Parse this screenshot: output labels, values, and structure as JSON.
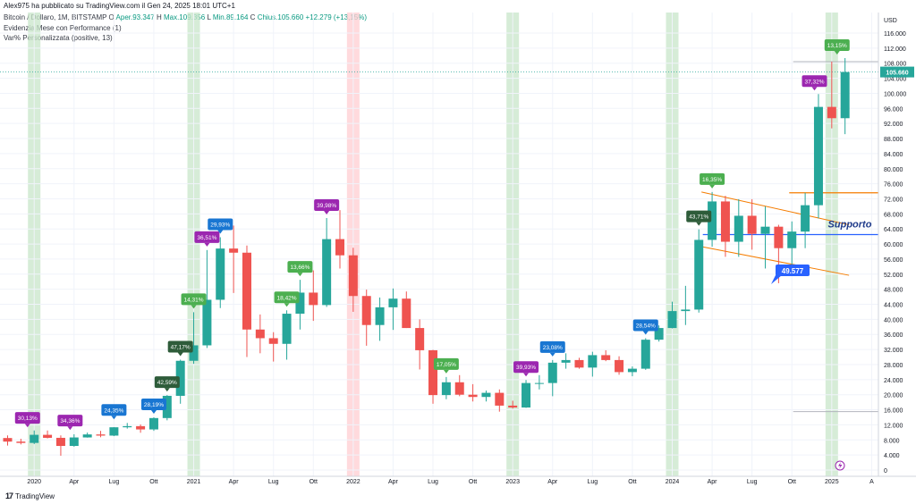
{
  "header": {
    "published": "Alex975 ha pubblicato su TradingView.com il Gen 24, 2025 18:01 UTC+1",
    "symbol": "Bitcoin / Dollaro, 1M, BITSTAMP",
    "o_label": "O",
    "o_value": "Aper.93.347",
    "h_label": "H",
    "h_value": "Max.109.356",
    "l_label": "L",
    "l_value": "Min.89.164",
    "c_label": "C",
    "c_value": "Chius.105.660",
    "change": "+12.279 (+13,15%)",
    "indicator1": "Evidenzia Mese con Performance (1)",
    "indicator2": "Var% Personalizzata (positive, 13)"
  },
  "brand": {
    "text": "TradingView",
    "logo": "17"
  },
  "colors": {
    "up": "#26a69a",
    "down": "#ef5350",
    "band_green": "#c8e6c9",
    "band_red": "#ffcdd2",
    "support_line": "#2962ff",
    "channel_line": "#f57c00",
    "label_purple": "#9c27b0",
    "label_blue": "#1976d2",
    "label_green": "#4caf50",
    "label_dark": "#2e5c3a",
    "price_tag": "#26a69a"
  },
  "chart_data": {
    "type": "candlestick",
    "currency_label": "USD",
    "ylim": [
      0,
      118000
    ],
    "y_ticks": [
      0,
      4000,
      8000,
      12000,
      16000,
      20000,
      24000,
      28000,
      32000,
      36000,
      40000,
      44000,
      48000,
      52000,
      56000,
      60000,
      64000,
      68000,
      72000,
      76000,
      80000,
      84000,
      88000,
      92000,
      96000,
      100000,
      104000,
      108000,
      112000,
      116000
    ],
    "y_tick_labels": [
      "0",
      "4.000",
      "8.000",
      "12.000",
      "16.000",
      "20.000",
      "24.000",
      "28.000",
      "32.000",
      "36.000",
      "40.000",
      "44.000",
      "48.000",
      "52.000",
      "56.000",
      "60.000",
      "64.000",
      "68.000",
      "72.000",
      "76.000",
      "80.000",
      "84.000",
      "88.000",
      "92.000",
      "96.000",
      "100.000",
      "104.000",
      "108.000",
      "112.000",
      "116.000"
    ],
    "x_ticks": [
      {
        "label": "2020",
        "index": 2
      },
      {
        "label": "Apr",
        "index": 5
      },
      {
        "label": "Lug",
        "index": 8
      },
      {
        "label": "Ott",
        "index": 11
      },
      {
        "label": "2021",
        "index": 14
      },
      {
        "label": "Apr",
        "index": 17
      },
      {
        "label": "Lug",
        "index": 20
      },
      {
        "label": "Ott",
        "index": 23
      },
      {
        "label": "2022",
        "index": 26
      },
      {
        "label": "Apr",
        "index": 29
      },
      {
        "label": "Lug",
        "index": 32
      },
      {
        "label": "Ott",
        "index": 35
      },
      {
        "label": "2023",
        "index": 38
      },
      {
        "label": "Apr",
        "index": 41
      },
      {
        "label": "Lug",
        "index": 44
      },
      {
        "label": "Ott",
        "index": 47
      },
      {
        "label": "2024",
        "index": 50
      },
      {
        "label": "Apr",
        "index": 53
      },
      {
        "label": "Lug",
        "index": 56
      },
      {
        "label": "Ott",
        "index": 59
      },
      {
        "label": "2025",
        "index": 62
      },
      {
        "label": "A",
        "index": 65
      }
    ],
    "candles": [
      {
        "o": 8500,
        "h": 9200,
        "l": 6500,
        "c": 7550
      },
      {
        "o": 7550,
        "h": 8300,
        "l": 6800,
        "c": 7200
      },
      {
        "o": 7200,
        "h": 10500,
        "l": 6900,
        "c": 9350
      },
      {
        "o": 9350,
        "h": 10500,
        "l": 8400,
        "c": 8550
      },
      {
        "o": 8550,
        "h": 9200,
        "l": 3800,
        "c": 6400
      },
      {
        "o": 6400,
        "h": 9500,
        "l": 6200,
        "c": 8650
      },
      {
        "o": 8650,
        "h": 9950,
        "l": 8600,
        "c": 9450
      },
      {
        "o": 9450,
        "h": 10400,
        "l": 8700,
        "c": 9140
      },
      {
        "o": 9140,
        "h": 11400,
        "l": 9000,
        "c": 11350
      },
      {
        "o": 11350,
        "h": 12500,
        "l": 11000,
        "c": 11650
      },
      {
        "o": 11650,
        "h": 12100,
        "l": 9900,
        "c": 10780
      },
      {
        "o": 10780,
        "h": 14000,
        "l": 10400,
        "c": 13800
      },
      {
        "o": 13800,
        "h": 19900,
        "l": 13200,
        "c": 19700
      },
      {
        "o": 19700,
        "h": 29300,
        "l": 17600,
        "c": 29000
      },
      {
        "o": 29000,
        "h": 41900,
        "l": 28200,
        "c": 33100
      },
      {
        "o": 33100,
        "h": 58400,
        "l": 32400,
        "c": 45200
      },
      {
        "o": 45200,
        "h": 61800,
        "l": 43000,
        "c": 58800
      },
      {
        "o": 58800,
        "h": 64900,
        "l": 47000,
        "c": 57700
      },
      {
        "o": 57700,
        "h": 59600,
        "l": 30000,
        "c": 37300
      },
      {
        "o": 37300,
        "h": 41300,
        "l": 31000,
        "c": 35000
      },
      {
        "o": 35000,
        "h": 36600,
        "l": 28800,
        "c": 33500
      },
      {
        "o": 33500,
        "h": 42400,
        "l": 29300,
        "c": 41500
      },
      {
        "o": 41500,
        "h": 50500,
        "l": 37300,
        "c": 47100
      },
      {
        "o": 47100,
        "h": 53000,
        "l": 39600,
        "c": 43800
      },
      {
        "o": 43800,
        "h": 66900,
        "l": 43300,
        "c": 61300
      },
      {
        "o": 61300,
        "h": 69000,
        "l": 53500,
        "c": 57000
      },
      {
        "o": 57000,
        "h": 59000,
        "l": 42000,
        "c": 46200
      },
      {
        "o": 46200,
        "h": 47900,
        "l": 33000,
        "c": 38500
      },
      {
        "o": 38500,
        "h": 45800,
        "l": 34300,
        "c": 43200
      },
      {
        "o": 43200,
        "h": 48200,
        "l": 37200,
        "c": 45500
      },
      {
        "o": 45500,
        "h": 47400,
        "l": 37700,
        "c": 37700
      },
      {
        "o": 37700,
        "h": 40000,
        "l": 26700,
        "c": 31800
      },
      {
        "o": 31800,
        "h": 31900,
        "l": 17600,
        "c": 19900
      },
      {
        "o": 19900,
        "h": 24700,
        "l": 18800,
        "c": 23300
      },
      {
        "o": 23300,
        "h": 25200,
        "l": 19600,
        "c": 20000
      },
      {
        "o": 20000,
        "h": 22800,
        "l": 18200,
        "c": 19400
      },
      {
        "o": 19400,
        "h": 21100,
        "l": 18200,
        "c": 20500
      },
      {
        "o": 20500,
        "h": 21400,
        "l": 15500,
        "c": 17100
      },
      {
        "o": 17100,
        "h": 18400,
        "l": 16300,
        "c": 16600
      },
      {
        "o": 16600,
        "h": 23900,
        "l": 16500,
        "c": 23100
      },
      {
        "o": 23100,
        "h": 25200,
        "l": 21400,
        "c": 23100
      },
      {
        "o": 23100,
        "h": 29200,
        "l": 19600,
        "c": 28500
      },
      {
        "o": 28500,
        "h": 31000,
        "l": 26900,
        "c": 29200
      },
      {
        "o": 29200,
        "h": 29800,
        "l": 26900,
        "c": 27200
      },
      {
        "o": 27200,
        "h": 31400,
        "l": 24800,
        "c": 30500
      },
      {
        "o": 30500,
        "h": 31800,
        "l": 28900,
        "c": 29200
      },
      {
        "o": 29200,
        "h": 30200,
        "l": 25300,
        "c": 26000
      },
      {
        "o": 26000,
        "h": 27500,
        "l": 24900,
        "c": 26900
      },
      {
        "o": 26900,
        "h": 35000,
        "l": 26600,
        "c": 34600
      },
      {
        "o": 34600,
        "h": 38400,
        "l": 34100,
        "c": 37700
      },
      {
        "o": 37700,
        "h": 44700,
        "l": 37600,
        "c": 42200
      },
      {
        "o": 42200,
        "h": 48900,
        "l": 38500,
        "c": 42600
      },
      {
        "o": 42600,
        "h": 63900,
        "l": 41800,
        "c": 61100
      },
      {
        "o": 61100,
        "h": 73800,
        "l": 59300,
        "c": 71300
      },
      {
        "o": 71300,
        "h": 72800,
        "l": 56600,
        "c": 60600
      },
      {
        "o": 60600,
        "h": 71900,
        "l": 56600,
        "c": 67500
      },
      {
        "o": 67500,
        "h": 71900,
        "l": 58500,
        "c": 62700
      },
      {
        "o": 62700,
        "h": 70000,
        "l": 53500,
        "c": 64600
      },
      {
        "o": 64600,
        "h": 65100,
        "l": 49600,
        "c": 58900
      },
      {
        "o": 58900,
        "h": 66000,
        "l": 52600,
        "c": 63300
      },
      {
        "o": 63300,
        "h": 73600,
        "l": 58900,
        "c": 70300
      },
      {
        "o": 70300,
        "h": 99800,
        "l": 66800,
        "c": 96400
      },
      {
        "o": 96400,
        "h": 108400,
        "l": 90700,
        "c": 93400
      },
      {
        "o": 93400,
        "h": 109356,
        "l": 89164,
        "c": 105660
      }
    ],
    "highlight_bands": [
      {
        "index": 2,
        "color": "green"
      },
      {
        "index": 14,
        "color": "green"
      },
      {
        "index": 26,
        "color": "red"
      },
      {
        "index": 38,
        "color": "green"
      },
      {
        "index": 50,
        "color": "green"
      },
      {
        "index": 62,
        "color": "green"
      }
    ],
    "perf_labels": [
      {
        "text": "30,13%",
        "index": 1.5,
        "price": 10400,
        "color": "purple"
      },
      {
        "text": "34,36%",
        "index": 4.7,
        "price": 9700,
        "color": "purple"
      },
      {
        "text": "24,35%",
        "index": 8,
        "price": 12500,
        "color": "blue"
      },
      {
        "text": "28,19%",
        "index": 11,
        "price": 14000,
        "color": "blue"
      },
      {
        "text": "42,59%",
        "index": 12,
        "price": 19900,
        "color": "dark"
      },
      {
        "text": "47,17%",
        "index": 13,
        "price": 29300,
        "color": "dark"
      },
      {
        "text": "14,31%",
        "index": 14,
        "price": 41900,
        "color": "green"
      },
      {
        "text": "36,51%",
        "index": 15,
        "price": 58400,
        "color": "purple"
      },
      {
        "text": "29,93%",
        "index": 16,
        "price": 61800,
        "color": "blue"
      },
      {
        "text": "18,42%",
        "index": 21,
        "price": 42400,
        "color": "green"
      },
      {
        "text": "13,66%",
        "index": 22,
        "price": 50500,
        "color": "green"
      },
      {
        "text": "39,98%",
        "index": 24,
        "price": 66900,
        "color": "purple"
      },
      {
        "text": "17,05%",
        "index": 33,
        "price": 24700,
        "color": "green"
      },
      {
        "text": "39,93%",
        "index": 39,
        "price": 23900,
        "color": "purple"
      },
      {
        "text": "23,08%",
        "index": 41,
        "price": 29200,
        "color": "blue"
      },
      {
        "text": "28,54%",
        "index": 48,
        "price": 35000,
        "color": "blue"
      },
      {
        "text": "43,71%",
        "index": 52,
        "price": 63900,
        "color": "dark"
      },
      {
        "text": "16,35%",
        "index": 53,
        "price": 73800,
        "color": "green"
      },
      {
        "text": "37,32%",
        "index": 60.7,
        "price": 99800,
        "color": "purple"
      },
      {
        "text": "13,15%",
        "index": 62.4,
        "price": 109356,
        "color": "green"
      }
    ],
    "support_label": "Supporto",
    "support_price": 62500,
    "value_label": "49.577",
    "current_price_label": "105.660",
    "current_price": 105660,
    "resistance_price": 73600,
    "ref_line_top_price": 108400,
    "ref_line_bottom_price": 15500,
    "channel_upper": {
      "from_index": 52.2,
      "from_price": 73800,
      "to_index": 63.3,
      "to_price": 65100
    },
    "channel_lower": {
      "from_index": 52.2,
      "from_price": 59300,
      "to_index": 63.3,
      "to_price": 51700
    }
  }
}
